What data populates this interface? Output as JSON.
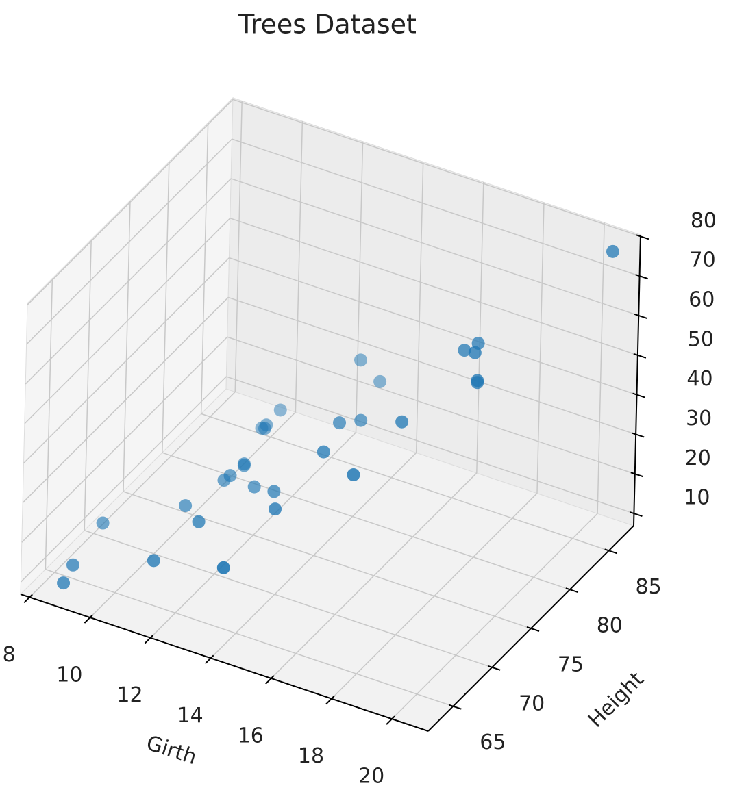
{
  "chart_data": {
    "type": "scatter3d",
    "title": "Trees Dataset",
    "xlabel": "Girth",
    "ylabel": "Height",
    "x": [
      8.3,
      8.6,
      8.8,
      10.5,
      10.7,
      10.8,
      11.0,
      11.0,
      11.1,
      11.2,
      11.3,
      11.4,
      11.4,
      11.7,
      12.0,
      12.9,
      12.9,
      13.3,
      13.7,
      13.8,
      14.0,
      14.2,
      14.5,
      16.0,
      16.3,
      17.3,
      17.5,
      17.9,
      18.0,
      18.0,
      20.6
    ],
    "y": [
      70,
      65,
      63,
      72,
      81,
      83,
      66,
      75,
      80,
      75,
      79,
      76,
      76,
      69,
      75,
      74,
      85,
      86,
      71,
      64,
      78,
      80,
      74,
      72,
      77,
      81,
      82,
      80,
      80,
      80,
      87
    ],
    "z": [
      10.3,
      10.3,
      10.2,
      16.4,
      18.8,
      19.7,
      15.6,
      18.2,
      22.6,
      19.9,
      24.2,
      21.0,
      21.4,
      21.3,
      19.1,
      22.2,
      33.8,
      27.4,
      25.7,
      24.9,
      34.5,
      31.7,
      36.3,
      38.3,
      42.6,
      55.4,
      55.7,
      58.3,
      51.5,
      51.0,
      77.0
    ],
    "color": "#1f77b4",
    "xlim": [
      7.7,
      21.2
    ],
    "ylim": [
      61.8,
      88.2
    ],
    "zlim": [
      6.9,
      80.4
    ],
    "xticks": [
      8,
      10,
      12,
      14,
      16,
      18,
      20
    ],
    "yticks": [
      65,
      70,
      75,
      80,
      85
    ],
    "zticks": [
      10,
      20,
      30,
      40,
      50,
      60,
      70,
      80
    ],
    "grid": true
  }
}
